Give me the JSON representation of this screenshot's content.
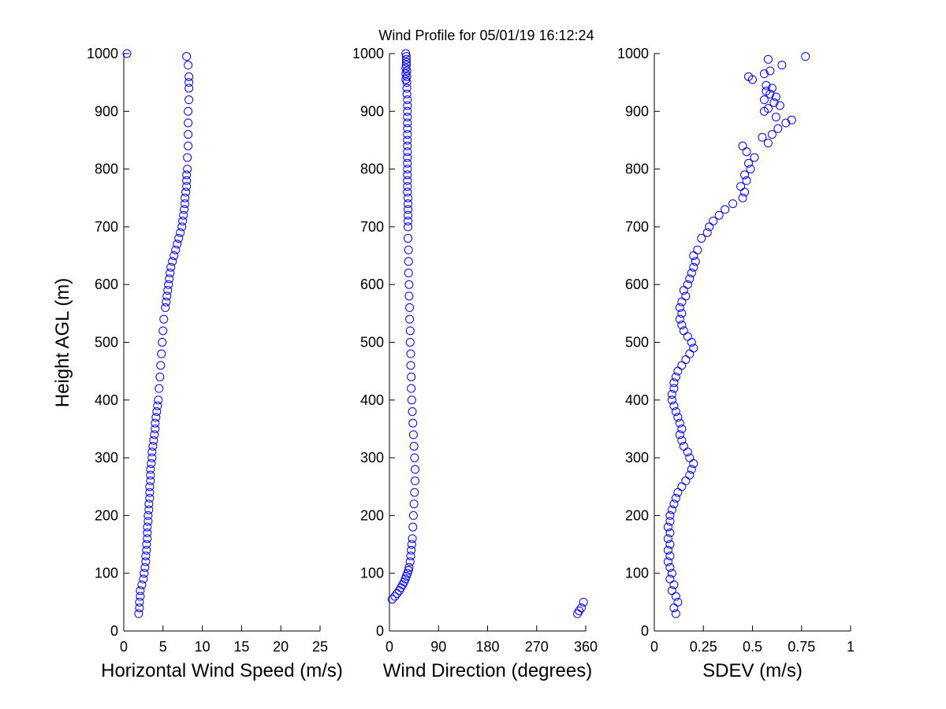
{
  "figure": {
    "title": "Wind Profile for  05/01/19 16:12:24",
    "ylabel": "Height AGL (m)",
    "marker_color": "#0000ff",
    "marker": "open-circle"
  },
  "chart_data": [
    {
      "type": "scatter",
      "xlabel": "Horizontal Wind Speed (m/s)",
      "ylabel": "Height AGL (m)",
      "xlim": [
        0,
        25
      ],
      "ylim": [
        0,
        1000
      ],
      "xticks": [
        0,
        5,
        10,
        15,
        20,
        25
      ],
      "xtick_labels": [
        "0",
        "5",
        "10",
        "15",
        "20",
        "25"
      ],
      "yticks": [
        0,
        100,
        200,
        300,
        400,
        500,
        600,
        700,
        800,
        900,
        1000
      ],
      "ytick_labels": [
        "0",
        "100",
        "200",
        "300",
        "400",
        "500",
        "600",
        "700",
        "800",
        "900",
        "1000"
      ],
      "grid": false,
      "series": [
        {
          "x": [
            1.9,
            2.0,
            2.0,
            2.1,
            2.1,
            2.3,
            2.5,
            2.6,
            2.7,
            2.8,
            2.8,
            2.9,
            2.9,
            3.0,
            3.0,
            3.0,
            3.1,
            3.1,
            3.2,
            3.2,
            3.3,
            3.3,
            3.3,
            3.4,
            3.4,
            3.4,
            3.5,
            3.6,
            3.6,
            3.7,
            3.8,
            3.9,
            4.0,
            4.0,
            4.1,
            4.2,
            4.3,
            4.4,
            4.5,
            4.6,
            4.7,
            4.8,
            4.9,
            5.0,
            5.1,
            5.3,
            5.4,
            5.5,
            5.6,
            5.7,
            5.8,
            5.9,
            6.0,
            6.2,
            6.4,
            6.6,
            6.8,
            7.0,
            7.2,
            7.4,
            7.5,
            7.6,
            7.7,
            7.8,
            7.8,
            7.9,
            8.0,
            8.0,
            8.0,
            8.1,
            8.1,
            8.2,
            8.2,
            8.2,
            8.2,
            8.3,
            8.3,
            8.3,
            8.3,
            8.2,
            8.0,
            0.4
          ],
          "y": [
            30,
            40,
            50,
            60,
            70,
            80,
            90,
            100,
            110,
            120,
            130,
            140,
            150,
            160,
            170,
            180,
            190,
            200,
            210,
            220,
            230,
            240,
            250,
            260,
            270,
            280,
            290,
            300,
            310,
            320,
            330,
            340,
            350,
            360,
            370,
            380,
            390,
            400,
            420,
            440,
            460,
            480,
            500,
            520,
            540,
            560,
            570,
            580,
            590,
            600,
            610,
            620,
            630,
            640,
            650,
            660,
            670,
            680,
            690,
            700,
            710,
            720,
            730,
            740,
            750,
            760,
            770,
            780,
            790,
            800,
            820,
            840,
            860,
            880,
            900,
            920,
            940,
            950,
            960,
            980,
            995,
            1000
          ]
        }
      ]
    },
    {
      "type": "scatter",
      "xlabel": "Wind Direction (degrees)",
      "ylabel": "",
      "xlim": [
        0,
        360
      ],
      "ylim": [
        0,
        1000
      ],
      "xticks": [
        0,
        90,
        180,
        270,
        360
      ],
      "xtick_labels": [
        "0",
        "90",
        "180",
        "270",
        "360"
      ],
      "yticks": [
        0,
        100,
        200,
        300,
        400,
        500,
        600,
        700,
        800,
        900,
        1000
      ],
      "ytick_labels": [
        "0",
        "100",
        "200",
        "300",
        "400",
        "500",
        "600",
        "700",
        "800",
        "900",
        "1000"
      ],
      "grid": false,
      "series": [
        {
          "x": [
            345,
            348,
            352,
            356,
            5,
            10,
            14,
            18,
            21,
            24,
            27,
            29,
            31,
            33,
            35,
            36,
            38,
            39,
            40,
            41,
            42,
            43,
            44,
            45,
            46,
            47,
            47,
            46,
            45,
            44,
            43,
            42,
            41,
            40,
            40,
            39,
            39,
            38,
            38,
            37,
            37,
            36,
            36,
            35,
            35,
            35,
            34,
            34,
            34,
            34,
            34,
            34,
            34,
            33,
            33,
            33,
            33,
            33,
            33,
            33,
            33,
            33,
            33,
            33,
            33,
            33,
            33,
            33,
            33,
            33,
            32,
            32,
            32,
            32,
            32,
            31,
            31,
            31,
            31,
            30,
            30,
            30,
            30
          ],
          "y": [
            30,
            35,
            40,
            50,
            55,
            60,
            65,
            70,
            75,
            80,
            85,
            90,
            95,
            100,
            105,
            110,
            120,
            130,
            140,
            150,
            160,
            180,
            200,
            220,
            240,
            260,
            280,
            300,
            320,
            340,
            360,
            380,
            400,
            420,
            440,
            460,
            480,
            500,
            520,
            540,
            560,
            580,
            600,
            620,
            640,
            660,
            680,
            700,
            710,
            720,
            730,
            740,
            750,
            760,
            770,
            780,
            790,
            800,
            810,
            820,
            830,
            840,
            850,
            860,
            870,
            880,
            890,
            900,
            910,
            920,
            930,
            940,
            950,
            960,
            970,
            980,
            985,
            990,
            995,
            1000,
            975,
            965,
            955
          ]
        }
      ]
    },
    {
      "type": "scatter",
      "xlabel": "SDEV  (m/s)",
      "ylabel": "",
      "xlim": [
        0,
        1
      ],
      "ylim": [
        0,
        1000
      ],
      "xticks": [
        0,
        0.25,
        0.5,
        0.75,
        1
      ],
      "xtick_labels": [
        "0",
        "0.25",
        "0.5",
        "0.75",
        "1"
      ],
      "yticks": [
        0,
        100,
        200,
        300,
        400,
        500,
        600,
        700,
        800,
        900,
        1000
      ],
      "ytick_labels": [
        "0",
        "100",
        "200",
        "300",
        "400",
        "500",
        "600",
        "700",
        "800",
        "900",
        "1000"
      ],
      "grid": false,
      "series": [
        {
          "x": [
            0.11,
            0.1,
            0.12,
            0.11,
            0.09,
            0.1,
            0.08,
            0.09,
            0.08,
            0.07,
            0.08,
            0.07,
            0.08,
            0.07,
            0.08,
            0.07,
            0.08,
            0.08,
            0.09,
            0.1,
            0.11,
            0.12,
            0.14,
            0.16,
            0.18,
            0.19,
            0.2,
            0.18,
            0.17,
            0.15,
            0.14,
            0.13,
            0.14,
            0.13,
            0.12,
            0.11,
            0.1,
            0.09,
            0.09,
            0.1,
            0.1,
            0.11,
            0.12,
            0.14,
            0.16,
            0.18,
            0.2,
            0.19,
            0.17,
            0.15,
            0.14,
            0.13,
            0.14,
            0.13,
            0.14,
            0.16,
            0.15,
            0.17,
            0.18,
            0.19,
            0.2,
            0.21,
            0.2,
            0.22,
            0.24,
            0.27,
            0.28,
            0.3,
            0.33,
            0.36,
            0.4,
            0.45,
            0.46,
            0.44,
            0.47,
            0.46,
            0.49,
            0.48,
            0.51,
            0.47,
            0.45,
            0.58,
            0.55,
            0.6,
            0.63,
            0.67,
            0.7,
            0.62,
            0.56,
            0.58,
            0.64,
            0.61,
            0.56,
            0.62,
            0.59,
            0.57,
            0.6,
            0.57,
            0.5,
            0.48,
            0.56,
            0.59,
            0.65,
            0.58,
            0.77
          ],
          "y": [
            30,
            40,
            50,
            60,
            70,
            80,
            90,
            100,
            110,
            120,
            130,
            140,
            150,
            160,
            170,
            180,
            190,
            200,
            210,
            220,
            230,
            240,
            250,
            260,
            270,
            280,
            290,
            300,
            310,
            320,
            330,
            340,
            350,
            360,
            370,
            380,
            390,
            400,
            410,
            420,
            430,
            440,
            450,
            460,
            470,
            480,
            490,
            500,
            510,
            520,
            530,
            540,
            550,
            560,
            570,
            580,
            590,
            600,
            610,
            620,
            630,
            640,
            650,
            660,
            680,
            690,
            700,
            710,
            720,
            730,
            740,
            750,
            760,
            770,
            780,
            790,
            800,
            810,
            820,
            830,
            840,
            845,
            855,
            860,
            870,
            880,
            885,
            890,
            900,
            905,
            910,
            915,
            920,
            925,
            930,
            935,
            940,
            945,
            955,
            960,
            965,
            970,
            980,
            990,
            995
          ]
        }
      ]
    }
  ]
}
